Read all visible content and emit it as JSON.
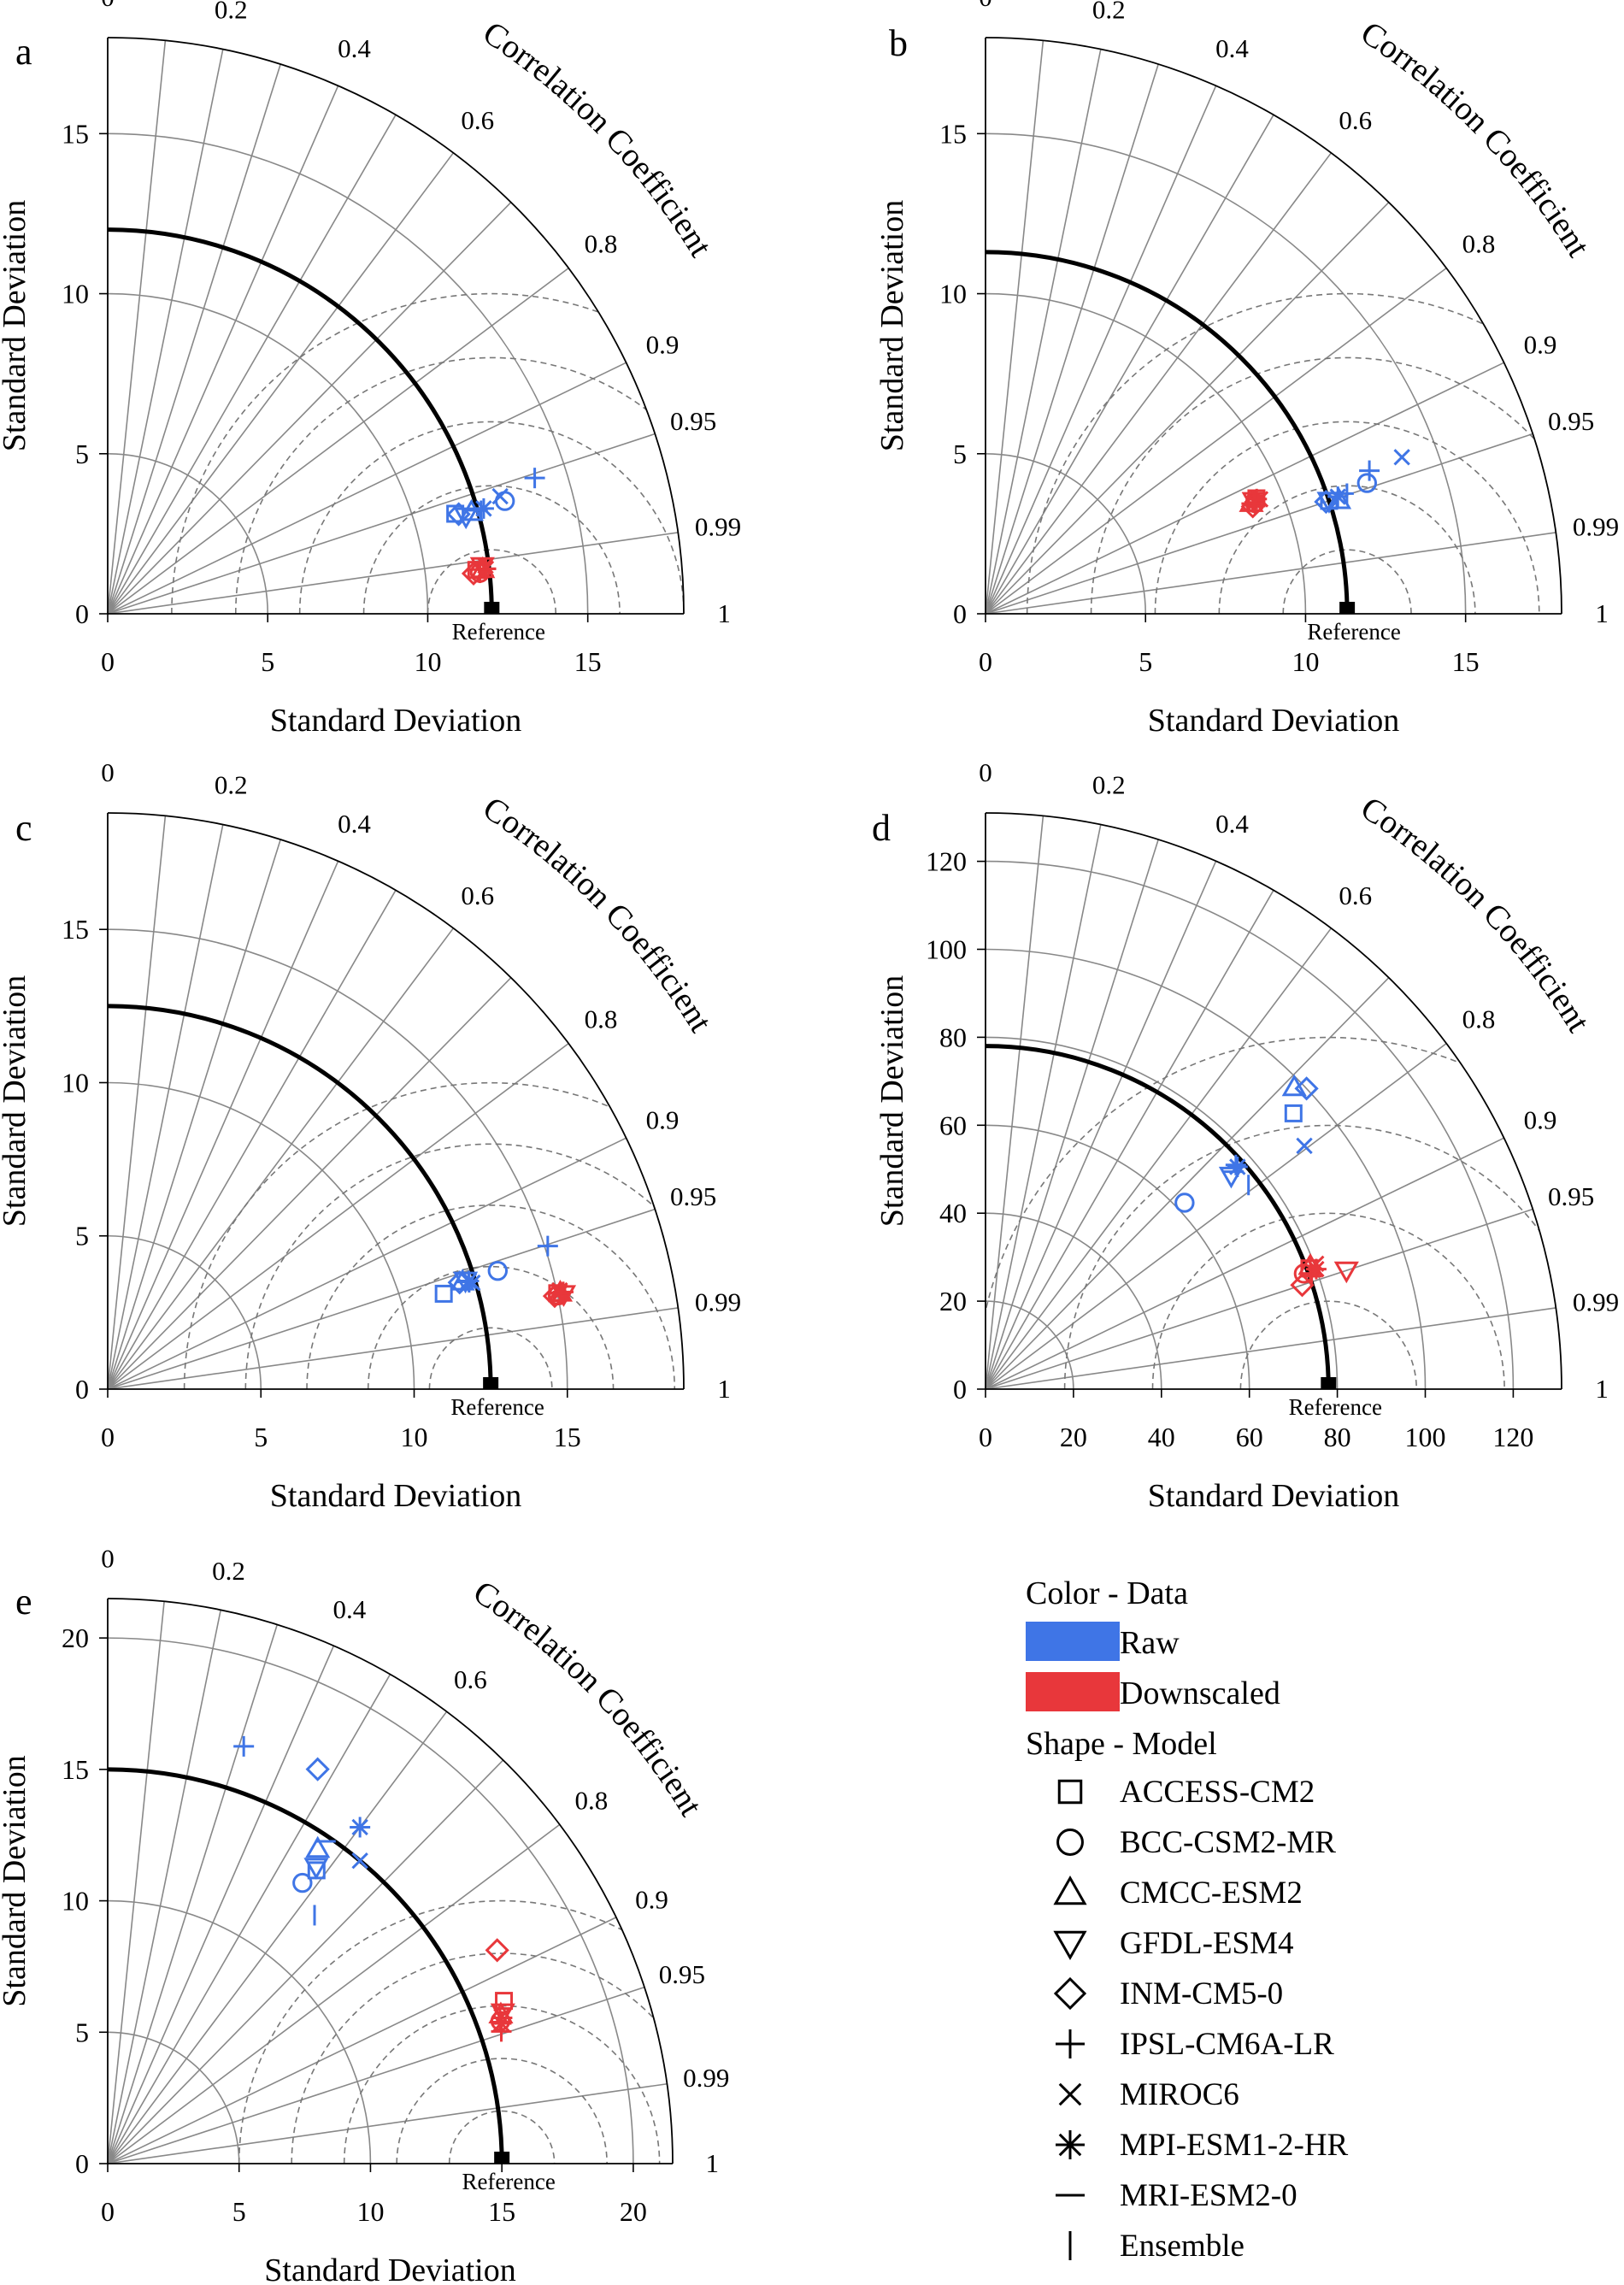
{
  "figure": {
    "colors": {
      "raw": "#3f75e6",
      "downscaled": "#e8373b",
      "axis": "#000000",
      "grid": "#888888",
      "rms": "#777777"
    }
  },
  "legend": {
    "color_title": "Color - Data",
    "colors": [
      {
        "label": "Raw",
        "color": "#3f75e6"
      },
      {
        "label": "Downscaled",
        "color": "#e8373b"
      }
    ],
    "shape_title": "Shape - Model",
    "models": [
      {
        "label": "ACCESS-CM2",
        "marker": "square"
      },
      {
        "label": "BCC-CSM2-MR",
        "marker": "circle"
      },
      {
        "label": "CMCC-ESM2",
        "marker": "triangle-up"
      },
      {
        "label": "GFDL-ESM4",
        "marker": "triangle-down"
      },
      {
        "label": "INM-CM5-0",
        "marker": "diamond"
      },
      {
        "label": "IPSL-CM6A-LR",
        "marker": "plus"
      },
      {
        "label": "MIROC6",
        "marker": "x"
      },
      {
        "label": "MPI-ESM1-2-HR",
        "marker": "asterisk"
      },
      {
        "label": "MRI-ESM2-0",
        "marker": "hline"
      },
      {
        "label": "Ensemble",
        "marker": "vline"
      }
    ]
  },
  "chart_data": [
    {
      "type": "scatter",
      "subtype": "taylor-diagram",
      "panel": "a",
      "xlabel": "Standard Deviation",
      "ylabel": "Standard Deviation",
      "corr_label": "Correlation Coefficient",
      "reference_label": "Reference",
      "sd_max": 18,
      "sd_ticks": [
        0,
        5,
        10,
        15
      ],
      "reference_sd": 12,
      "corr_ticks": [
        "0",
        "0.2",
        "0.4",
        "0.6",
        "0.8",
        "0.9",
        "0.95",
        "0.99",
        "1"
      ],
      "rms_circles": [
        2,
        4,
        6,
        8,
        10
      ],
      "series": [
        {
          "name": "Raw",
          "points": [
            {
              "model": "ACCESS-CM2",
              "sd": 11.3,
              "corr": 0.961
            },
            {
              "model": "BCC-CSM2-MR",
              "sd": 12.9,
              "corr": 0.962
            },
            {
              "model": "CMCC-ESM2",
              "sd": 11.8,
              "corr": 0.963
            },
            {
              "model": "GFDL-ESM4",
              "sd": 11.6,
              "corr": 0.965
            },
            {
              "model": "INM-CM5-0",
              "sd": 11.4,
              "corr": 0.962
            },
            {
              "model": "IPSL-CM6A-LR",
              "sd": 14.0,
              "corr": 0.953
            },
            {
              "model": "MIROC6",
              "sd": 12.8,
              "corr": 0.958
            },
            {
              "model": "MPI-ESM1-2-HR",
              "sd": 12.2,
              "corr": 0.963
            },
            {
              "model": "MRI-ESM2-0",
              "sd": 12.0,
              "corr": 0.963
            },
            {
              "model": "Ensemble",
              "sd": 12.1,
              "corr": 0.964
            }
          ]
        },
        {
          "name": "Downscaled",
          "points": [
            {
              "model": "ACCESS-CM2",
              "sd": 11.6,
              "corr": 0.993
            },
            {
              "model": "BCC-CSM2-MR",
              "sd": 11.7,
              "corr": 0.994
            },
            {
              "model": "CMCC-ESM2",
              "sd": 11.8,
              "corr": 0.993
            },
            {
              "model": "GFDL-ESM4",
              "sd": 11.8,
              "corr": 0.992
            },
            {
              "model": "INM-CM5-0",
              "sd": 11.5,
              "corr": 0.994
            },
            {
              "model": "IPSL-CM6A-LR",
              "sd": 11.9,
              "corr": 0.993
            },
            {
              "model": "MIROC6",
              "sd": 11.9,
              "corr": 0.992
            },
            {
              "model": "MPI-ESM1-2-HR",
              "sd": 11.9,
              "corr": 0.993
            },
            {
              "model": "MRI-ESM2-0",
              "sd": 11.7,
              "corr": 0.993
            },
            {
              "model": "Ensemble",
              "sd": 11.7,
              "corr": 0.994
            }
          ]
        }
      ]
    },
    {
      "type": "scatter",
      "subtype": "taylor-diagram",
      "panel": "b",
      "xlabel": "Standard Deviation",
      "ylabel": "Standard Deviation",
      "corr_label": "Correlation Coefficient",
      "reference_label": "Reference",
      "sd_max": 18,
      "sd_ticks": [
        0,
        5,
        10,
        15
      ],
      "reference_sd": 11.3,
      "corr_ticks": [
        "0",
        "0.2",
        "0.4",
        "0.6",
        "0.8",
        "0.9",
        "0.95",
        "0.99",
        "1"
      ],
      "rms_circles": [
        2,
        4,
        6,
        8,
        10
      ],
      "series": [
        {
          "name": "Raw",
          "points": [
            {
              "model": "ACCESS-CM2",
              "sd": 11.3,
              "corr": 0.95
            },
            {
              "model": "BCC-CSM2-MR",
              "sd": 12.6,
              "corr": 0.946
            },
            {
              "model": "CMCC-ESM2",
              "sd": 11.6,
              "corr": 0.952
            },
            {
              "model": "GFDL-ESM4",
              "sd": 11.3,
              "corr": 0.95
            },
            {
              "model": "INM-CM5-0",
              "sd": 11.2,
              "corr": 0.95
            },
            {
              "model": "IPSL-CM6A-LR",
              "sd": 12.8,
              "corr": 0.937
            },
            {
              "model": "MIROC6",
              "sd": 13.9,
              "corr": 0.936
            },
            {
              "model": "MPI-ESM1-2-HR",
              "sd": 11.6,
              "corr": 0.949
            },
            {
              "model": "MRI-ESM2-0",
              "sd": 11.8,
              "corr": 0.948
            },
            {
              "model": "Ensemble",
              "sd": 11.9,
              "corr": 0.949
            }
          ]
        },
        {
          "name": "Downscaled",
          "points": [
            {
              "model": "ACCESS-CM2",
              "sd": 9.2,
              "corr": 0.92
            },
            {
              "model": "BCC-CSM2-MR",
              "sd": 9.1,
              "corr": 0.925
            },
            {
              "model": "CMCC-ESM2",
              "sd": 9.0,
              "corr": 0.923
            },
            {
              "model": "GFDL-ESM4",
              "sd": 9.1,
              "corr": 0.922
            },
            {
              "model": "INM-CM5-0",
              "sd": 9.0,
              "corr": 0.928
            },
            {
              "model": "IPSL-CM6A-LR",
              "sd": 9.2,
              "corr": 0.921
            },
            {
              "model": "MIROC6",
              "sd": 9.3,
              "corr": 0.923
            },
            {
              "model": "MPI-ESM1-2-HR",
              "sd": 9.1,
              "corr": 0.924
            },
            {
              "model": "MRI-ESM2-0",
              "sd": 9.0,
              "corr": 0.924
            },
            {
              "model": "Ensemble",
              "sd": 9.1,
              "corr": 0.923
            }
          ]
        }
      ]
    },
    {
      "type": "scatter",
      "subtype": "taylor-diagram",
      "panel": "c",
      "xlabel": "Standard Deviation",
      "ylabel": "Standard Deviation",
      "corr_label": "Correlation Coefficient",
      "reference_label": "Reference",
      "sd_max": 18.8,
      "sd_ticks": [
        0,
        5,
        10,
        15
      ],
      "reference_sd": 12.5,
      "corr_ticks": [
        "0",
        "0.2",
        "0.4",
        "0.6",
        "0.8",
        "0.9",
        "0.95",
        "0.99",
        "1"
      ],
      "rms_circles": [
        2,
        4,
        6,
        8,
        10
      ],
      "series": [
        {
          "name": "Raw",
          "points": [
            {
              "model": "ACCESS-CM2",
              "sd": 11.4,
              "corr": 0.962
            },
            {
              "model": "BCC-CSM2-MR",
              "sd": 13.3,
              "corr": 0.957
            },
            {
              "model": "CMCC-ESM2",
              "sd": 12.1,
              "corr": 0.957
            },
            {
              "model": "GFDL-ESM4",
              "sd": 12.2,
              "corr": 0.957
            },
            {
              "model": "INM-CM5-0",
              "sd": 12.0,
              "corr": 0.957
            },
            {
              "model": "IPSL-CM6A-LR",
              "sd": 15.1,
              "corr": 0.951
            },
            {
              "model": "MIROC6",
              "sd": 12.4,
              "corr": 0.96
            },
            {
              "model": "MPI-ESM1-2-HR",
              "sd": 12.3,
              "corr": 0.958
            },
            {
              "model": "MRI-ESM2-0",
              "sd": 12.2,
              "corr": 0.958
            },
            {
              "model": "Ensemble",
              "sd": 12.3,
              "corr": 0.959
            }
          ]
        },
        {
          "name": "Downscaled",
          "points": [
            {
              "model": "ACCESS-CM2",
              "sd": 15.0,
              "corr": 0.978
            },
            {
              "model": "BCC-CSM2-MR",
              "sd": 15.0,
              "corr": 0.979
            },
            {
              "model": "CMCC-ESM2",
              "sd": 15.1,
              "corr": 0.978
            },
            {
              "model": "GFDL-ESM4",
              "sd": 15.2,
              "corr": 0.979
            },
            {
              "model": "INM-CM5-0",
              "sd": 14.9,
              "corr": 0.979
            },
            {
              "model": "IPSL-CM6A-LR",
              "sd": 15.2,
              "corr": 0.978
            },
            {
              "model": "MIROC6",
              "sd": 15.1,
              "corr": 0.977
            },
            {
              "model": "MPI-ESM1-2-HR",
              "sd": 15.1,
              "corr": 0.978
            },
            {
              "model": "MRI-ESM2-0",
              "sd": 15.0,
              "corr": 0.978
            },
            {
              "model": "Ensemble",
              "sd": 15.1,
              "corr": 0.979
            }
          ]
        }
      ]
    },
    {
      "type": "scatter",
      "subtype": "taylor-diagram",
      "panel": "d",
      "xlabel": "Standard Deviation",
      "ylabel": "Standard Deviation",
      "corr_label": "Correlation Coefficient",
      "reference_label": "Reference",
      "sd_max": 131,
      "sd_ticks": [
        0,
        20,
        40,
        60,
        80,
        100,
        120
      ],
      "reference_sd": 78,
      "corr_ticks": [
        "0",
        "0.2",
        "0.4",
        "0.6",
        "0.8",
        "0.9",
        "0.95",
        "0.99",
        "1"
      ],
      "rms_circles": [
        20,
        40,
        60,
        80
      ],
      "series": [
        {
          "name": "Raw",
          "points": [
            {
              "model": "ACCESS-CM2",
              "sd": 94.0,
              "corr": 0.745
            },
            {
              "model": "BCC-CSM2-MR",
              "sd": 62.0,
              "corr": 0.73
            },
            {
              "model": "CMCC-ESM2",
              "sd": 98.2,
              "corr": 0.715
            },
            {
              "model": "GFDL-ESM4",
              "sd": 74.0,
              "corr": 0.755
            },
            {
              "model": "INM-CM5-0",
              "sd": 100.0,
              "corr": 0.73
            },
            {
              "model": "IPSL-CM6A-LR",
              "sd": 76.4,
              "corr": 0.745
            },
            {
              "model": "MIROC6",
              "sd": 91.2,
              "corr": 0.795
            },
            {
              "model": "MPI-ESM1-2-HR",
              "sd": 76.4,
              "corr": 0.75
            },
            {
              "model": "MRI-ESM2-0",
              "sd": 75.0,
              "corr": 0.752
            },
            {
              "model": "Ensemble",
              "sd": 75.7,
              "corr": 0.79
            }
          ]
        },
        {
          "name": "Downscaled",
          "points": [
            {
              "model": "ACCESS-CM2",
              "sd": 78.6,
              "corr": 0.937
            },
            {
              "model": "BCC-CSM2-MR",
              "sd": 77.0,
              "corr": 0.94
            },
            {
              "model": "CMCC-ESM2",
              "sd": 79.0,
              "corr": 0.935
            },
            {
              "model": "GFDL-ESM4",
              "sd": 86.4,
              "corr": 0.95
            },
            {
              "model": "INM-CM5-0",
              "sd": 75.8,
              "corr": 0.95
            },
            {
              "model": "IPSL-CM6A-LR",
              "sd": 78.5,
              "corr": 0.945
            },
            {
              "model": "MIROC6",
              "sd": 80.4,
              "corr": 0.935
            },
            {
              "model": "MPI-ESM1-2-HR",
              "sd": 80.0,
              "corr": 0.94
            },
            {
              "model": "MRI-ESM2-0",
              "sd": 78.3,
              "corr": 0.942
            },
            {
              "model": "Ensemble",
              "sd": 78.5,
              "corr": 0.941
            }
          ]
        }
      ]
    },
    {
      "type": "scatter",
      "subtype": "taylor-diagram",
      "panel": "e",
      "xlabel": "Standard Deviation",
      "ylabel": "Standard Deviation",
      "corr_label": "Correlation Coefficient",
      "reference_label": "Reference",
      "sd_max": 21.5,
      "sd_ticks": [
        0,
        5,
        10,
        15,
        20
      ],
      "reference_sd": 15,
      "corr_ticks": [
        "0",
        "0.2",
        "0.4",
        "0.6",
        "0.8",
        "0.9",
        "0.95",
        "0.99",
        "1"
      ],
      "rms_circles": [
        2,
        4,
        6,
        8,
        10
      ],
      "series": [
        {
          "name": "Raw",
          "points": [
            {
              "model": "ACCESS-CM2",
              "sd": 13.7,
              "corr": 0.58
            },
            {
              "model": "BCC-CSM2-MR",
              "sd": 13.0,
              "corr": 0.57
            },
            {
              "model": "CMCC-ESM2",
              "sd": 14.4,
              "corr": 0.555
            },
            {
              "model": "GFDL-ESM4",
              "sd": 13.8,
              "corr": 0.575
            },
            {
              "model": "INM-CM5-0",
              "sd": 17.0,
              "corr": 0.47
            },
            {
              "model": "IPSL-CM6A-LR",
              "sd": 16.7,
              "corr": 0.31
            },
            {
              "model": "MIROC6",
              "sd": 15.0,
              "corr": 0.64
            },
            {
              "model": "MPI-ESM1-2-HR",
              "sd": 16.0,
              "corr": 0.6
            },
            {
              "model": "MRI-ESM2-0",
              "sd": 14.8,
              "corr": 0.56
            },
            {
              "model": "Ensemble",
              "sd": 12.3,
              "corr": 0.64
            }
          ]
        },
        {
          "name": "Downscaled",
          "points": [
            {
              "model": "ACCESS-CM2",
              "sd": 16.3,
              "corr": 0.925
            },
            {
              "model": "BCC-CSM2-MR",
              "sd": 15.9,
              "corr": 0.94
            },
            {
              "model": "CMCC-ESM2",
              "sd": 16.0,
              "corr": 0.935
            },
            {
              "model": "GFDL-ESM4",
              "sd": 16.1,
              "corr": 0.934
            },
            {
              "model": "INM-CM5-0",
              "sd": 16.9,
              "corr": 0.877
            },
            {
              "model": "IPSL-CM6A-LR",
              "sd": 15.8,
              "corr": 0.948
            },
            {
              "model": "MIROC6",
              "sd": 16.0,
              "corr": 0.937
            },
            {
              "model": "MPI-ESM1-2-HR",
              "sd": 15.9,
              "corr": 0.942
            },
            {
              "model": "MRI-ESM2-0",
              "sd": 16.0,
              "corr": 0.938
            },
            {
              "model": "Ensemble",
              "sd": 15.9,
              "corr": 0.939
            }
          ]
        }
      ]
    }
  ]
}
